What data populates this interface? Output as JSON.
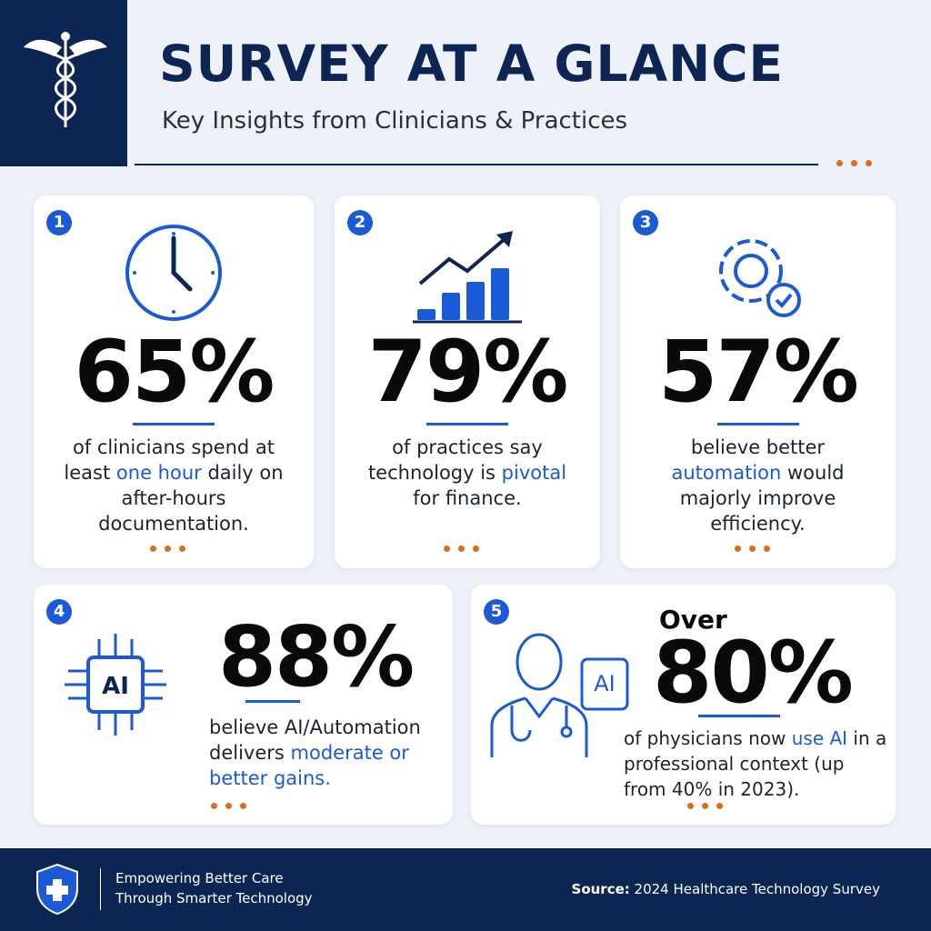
{
  "header": {
    "title": "SURVEY AT A GLANCE",
    "subtitle": "Key Insights from Clinicians & Practices"
  },
  "cards": [
    {
      "number": "1",
      "stat": "65%",
      "description": [
        {
          "text": "of clinicians spend at least "
        },
        {
          "text": "one hour",
          "highlight": true
        },
        {
          "text": " daily on after-hours documentation."
        }
      ]
    },
    {
      "number": "2",
      "stat": "79%",
      "description": [
        {
          "text": "of practices say technology is "
        },
        {
          "text": "pivotal",
          "highlight": true
        },
        {
          "text": " for finance."
        }
      ]
    },
    {
      "number": "3",
      "stat": "57%",
      "description": [
        {
          "text": "believe better "
        },
        {
          "text": "automation",
          "highlight": true
        },
        {
          "text": " would majorly improve efficiency."
        }
      ]
    },
    {
      "number": "4",
      "stat": "88%",
      "icon_label": "AI",
      "description": [
        {
          "text": "believe AI/Automation delivers "
        },
        {
          "text": "moderate or better gains.",
          "highlight": true
        }
      ]
    },
    {
      "number": "5",
      "prefix": "Over",
      "stat": "80%",
      "icon_label": "AI",
      "description": [
        {
          "text": "of physicians now "
        },
        {
          "text": "use AI",
          "highlight": true
        },
        {
          "text": " in a professional context (up from 40% in 2023)."
        }
      ]
    }
  ],
  "footer": {
    "tagline": [
      "Empowering Better Care",
      "Through Smarter Technology"
    ],
    "source_label": "Source:",
    "source": "2024 Healthcare Technology Survey"
  }
}
